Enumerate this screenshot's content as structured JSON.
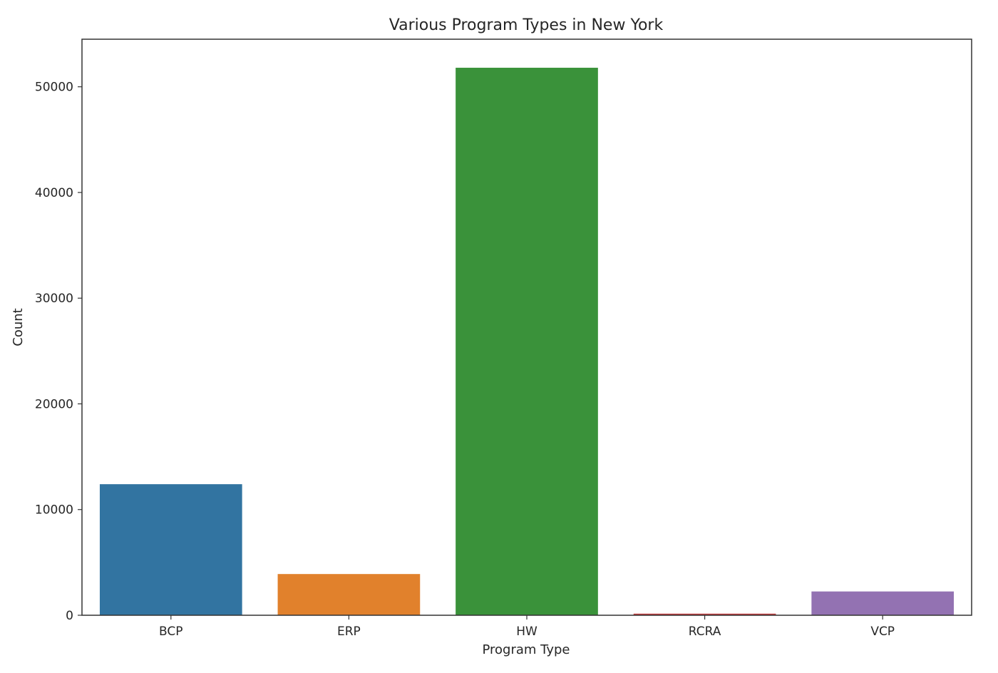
{
  "chart_data": {
    "type": "bar",
    "title": "Various Program Types in New York",
    "xlabel": "Program Type",
    "ylabel": "Count",
    "categories": [
      "BCP",
      "ERP",
      "HW",
      "RCRA",
      "VCP"
    ],
    "values": [
      12400,
      3900,
      51800,
      150,
      2250
    ],
    "colors": [
      "#3274a1",
      "#e1812c",
      "#3a923a",
      "#c03d3e",
      "#9372b2"
    ],
    "ylim": [
      0,
      54500
    ],
    "yticks": [
      0,
      10000,
      20000,
      30000,
      40000,
      50000
    ],
    "grid": false,
    "legend": "none"
  }
}
